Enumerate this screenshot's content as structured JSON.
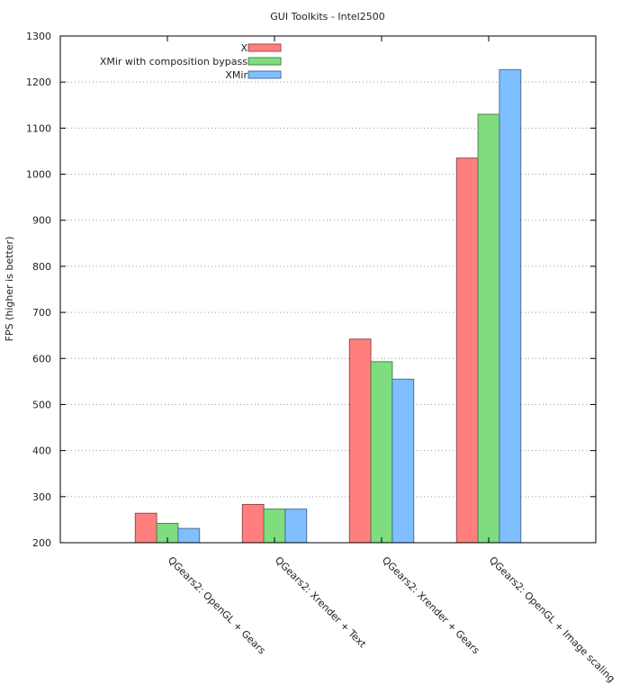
{
  "chart_data": {
    "type": "bar",
    "title": "GUI Toolkits - Intel2500",
    "xlabel": "",
    "ylabel": "FPS (higher is better)",
    "ylim": [
      200,
      1300
    ],
    "yticks": [
      200,
      300,
      400,
      500,
      600,
      700,
      800,
      900,
      1000,
      1100,
      1200,
      1300
    ],
    "grid": "horizontal-dotted",
    "legend_position": "top-left",
    "categories": [
      "QGears2: OpenGL + Gears",
      "QGears2: Xrender + Text",
      "QGears2: Xrender + Gears",
      "QGears2: OpenGL + Image scaling"
    ],
    "series": [
      {
        "name": "X",
        "color": "#ff7f7f",
        "values": [
          264,
          283,
          642,
          1035
        ]
      },
      {
        "name": "XMir with composition bypass",
        "color": "#7fdc7f",
        "values": [
          242,
          273,
          593,
          1130
        ]
      },
      {
        "name": "XMir",
        "color": "#7fbfff",
        "values": [
          231,
          273,
          555,
          1227
        ]
      }
    ]
  }
}
